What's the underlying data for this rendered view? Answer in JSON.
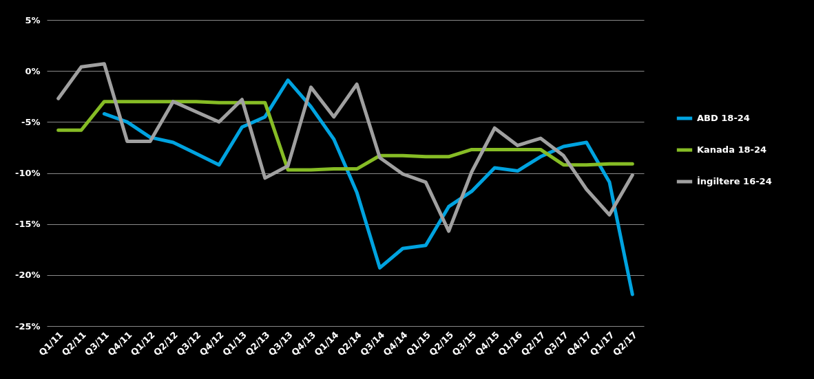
{
  "chart_data": {
    "type": "line",
    "categories": [
      "Q1/11",
      "Q2/11",
      "Q3/11",
      "Q4/11",
      "Q1/12",
      "Q2/12",
      "Q3/12",
      "Q4/12",
      "Q1/13",
      "Q2/13",
      "Q3/13",
      "Q4/13",
      "Q1/14",
      "Q2/14",
      "Q3/14",
      "Q4/14",
      "Q1/15",
      "Q2/15",
      "Q3/15",
      "Q4/15",
      "Q1/16",
      "Q2/17",
      "Q3/17",
      "Q4/17",
      "Q1/17",
      "Q2/17"
    ],
    "series": [
      {
        "name": "ABD 18-24",
        "color": "#00a3e0",
        "values": [
          null,
          null,
          -4.2,
          -5.0,
          -6.5,
          -7.0,
          -8.1,
          -9.2,
          -5.5,
          -4.5,
          -0.9,
          -3.5,
          -6.7,
          -11.9,
          -19.3,
          -17.4,
          -17.1,
          -13.3,
          -11.8,
          -9.5,
          -9.8,
          -8.4,
          -7.4,
          -7.0,
          -10.9,
          -21.9
        ]
      },
      {
        "name": "Kanada 18-24",
        "color": "#86bc25",
        "values": [
          -5.8,
          -5.8,
          -3.0,
          -3.0,
          -3.0,
          -3.0,
          -3.0,
          -3.1,
          -3.1,
          -3.1,
          -9.7,
          -9.7,
          -9.6,
          -9.6,
          -8.3,
          -8.3,
          -8.4,
          -8.4,
          -7.7,
          -7.7,
          -7.7,
          -7.7,
          -9.2,
          -9.2,
          -9.1,
          -9.1
        ]
      },
      {
        "name": "İngiltere 16-24",
        "color": "#a0a0a0",
        "values": [
          -2.7,
          0.4,
          0.7,
          -6.9,
          -6.9,
          -3.0,
          -4.0,
          -5.0,
          -2.8,
          -10.5,
          -9.3,
          -1.6,
          -4.5,
          -1.3,
          -8.5,
          -10.1,
          -10.9,
          -15.7,
          -9.9,
          -5.6,
          -7.3,
          -6.6,
          -8.3,
          -11.6,
          -14.1,
          -10.2
        ]
      }
    ],
    "ylim": [
      -25,
      5
    ],
    "yticks": [
      {
        "value": 5,
        "label": "5%"
      },
      {
        "value": 0,
        "label": "0%"
      },
      {
        "value": -5,
        "label": "-5%"
      },
      {
        "value": -10,
        "label": "-10%"
      },
      {
        "value": -15,
        "label": "-15%"
      },
      {
        "value": -20,
        "label": "-20%"
      },
      {
        "value": -25,
        "label": "-25%"
      }
    ],
    "grid": "y",
    "legend": "right",
    "marker": "none",
    "line_style": "solid"
  }
}
